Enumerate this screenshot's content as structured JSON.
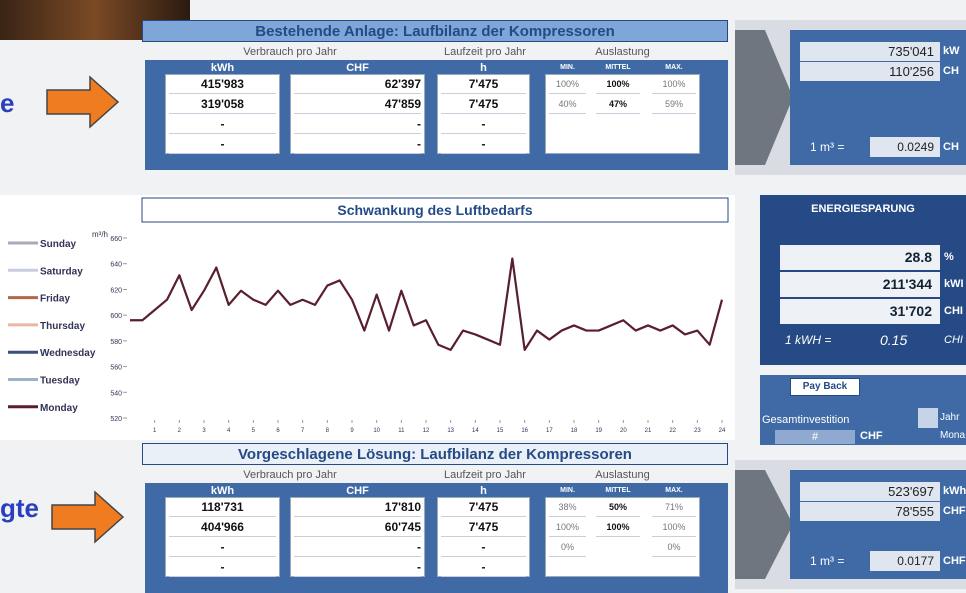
{
  "side_labels": [
    "e",
    "gte"
  ],
  "existing": {
    "title": "Bestehende Anlage: Laufbilanz der Kompressoren",
    "group_headers": [
      "Verbrauch pro Jahr",
      "Laufzeit pro Jahr",
      "Auslastung"
    ],
    "columns": [
      "kWh",
      "CHF",
      "h",
      "MIN.",
      "MITTEL",
      "MAX."
    ],
    "rows": [
      [
        "415'983",
        "62'397",
        "7'475",
        "100%",
        "100%",
        "100%"
      ],
      [
        "319'058",
        "47'859",
        "7'475",
        "40%",
        "47%",
        "59%"
      ],
      [
        "-",
        "-",
        "-"
      ],
      [
        "-",
        "-",
        "-"
      ]
    ]
  },
  "existing_totals": {
    "rows": [
      [
        "735'041",
        "kW"
      ],
      [
        "110'256",
        "CH"
      ]
    ],
    "rate_label": "1 m³ =",
    "rate": "0.0249",
    "rate_unit": "CH"
  },
  "chart": {
    "type": "line",
    "title": "Schwankung des Luftbedarfs",
    "y_label": "m³/h",
    "x": [
      0,
      0.5,
      1,
      1.5,
      2,
      2.5,
      3,
      3.5,
      4,
      4.5,
      5,
      5.5,
      6,
      6.5,
      7,
      7.5,
      8,
      8.5,
      9,
      9.5,
      10,
      10.5,
      11,
      11.5,
      12,
      12.5,
      13,
      13.5,
      14,
      14.5,
      15,
      15.5,
      16,
      16.5,
      17,
      17.5,
      18,
      18.5,
      19,
      19.5,
      20,
      20.5,
      21,
      21.5,
      22,
      22.5,
      23,
      23.5,
      24
    ],
    "xlim": [
      0,
      24
    ],
    "xticks": [
      1,
      2,
      3,
      4,
      5,
      6,
      7,
      8,
      9,
      10,
      11,
      12,
      13,
      14,
      15,
      16,
      17,
      18,
      19,
      20,
      21,
      22,
      23,
      24
    ],
    "ylim": [
      520,
      660
    ],
    "yticks": [
      520,
      540,
      560,
      580,
      600,
      620,
      640,
      660
    ],
    "series": [
      {
        "name": "Sunday",
        "color": "#a9a9b8"
      },
      {
        "name": "Saturday",
        "color": "#c8cde0"
      },
      {
        "name": "Friday",
        "color": "#b0674a"
      },
      {
        "name": "Thursday",
        "color": "#e8b8a0"
      },
      {
        "name": "Wednesday",
        "color": "#3a4f7a"
      },
      {
        "name": "Tuesday",
        "color": "#9fb0cc"
      },
      {
        "name": "Monday",
        "color": "#5a1f2e",
        "values": [
          596,
          596,
          604,
          612,
          631,
          604,
          619,
          637,
          608,
          619,
          612,
          608,
          619,
          608,
          612,
          608,
          623,
          627,
          612,
          588,
          616,
          588,
          619,
          592,
          596,
          577,
          573,
          588,
          585,
          581,
          577,
          644,
          573,
          588,
          581,
          588,
          592,
          588,
          588,
          592,
          596,
          588,
          592,
          588,
          592,
          585,
          588,
          577,
          612
        ]
      }
    ]
  },
  "savings": {
    "title": "ENERGIESPARUNG",
    "rows": [
      [
        "28.8",
        "%"
      ],
      [
        "211'344",
        "kWI"
      ],
      [
        "31'702",
        "CHI"
      ]
    ],
    "rate_label": "1 kWH =",
    "rate": "0.15",
    "rate_unit": "CHI"
  },
  "payback": {
    "title": "Pay Back",
    "invest_label": "Gesamtinvestition",
    "invest_value": "#",
    "invest_unit": "CHF",
    "year": "Jahr",
    "month": "Mona"
  },
  "proposed": {
    "title": "Vorgeschlagene Lösung: Laufbilanz der Kompressoren",
    "group_headers": [
      "Verbrauch pro Jahr",
      "Laufzeit pro Jahr",
      "Auslastung"
    ],
    "columns": [
      "kWh",
      "CHF",
      "h",
      "MIN.",
      "MITTEL",
      "MAX."
    ],
    "rows": [
      [
        "118'731",
        "17'810",
        "7'475",
        "38%",
        "50%",
        "71%"
      ],
      [
        "404'966",
        "60'745",
        "7'475",
        "100%",
        "100%",
        "100%"
      ],
      [
        "-",
        "-",
        "-",
        "0%",
        null,
        "0%"
      ],
      [
        "-",
        "-",
        "-"
      ]
    ]
  },
  "proposed_totals": {
    "rows": [
      [
        "523'697",
        "kWh"
      ],
      [
        "78'555",
        "CHF"
      ]
    ],
    "rate_label": "1 m³ =",
    "rate": "0.0177",
    "rate_unit": "CHF"
  }
}
